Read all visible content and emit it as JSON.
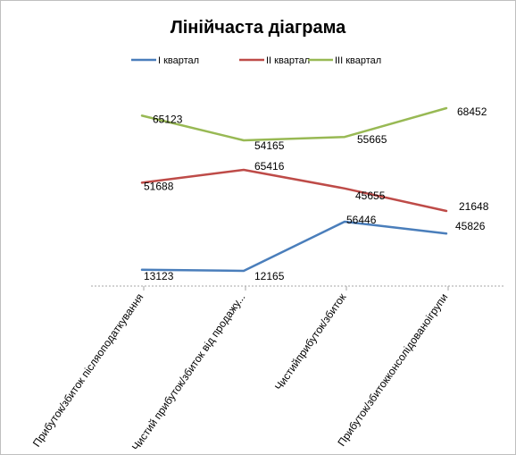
{
  "chart_data": {
    "type": "line",
    "title": "Лінійчаста діаграма",
    "categories": [
      "Прибуток/збиток післяоподаткування",
      "Чистий прибуток/збиток від продажу...",
      "Чистийприбуток/збиток",
      "Прибуток/збитокконсолідованоігрупи"
    ],
    "series": [
      {
        "name": "I квартал",
        "color": "#4a7ebb",
        "values": [
          13123,
          12165,
          56446,
          45826
        ]
      },
      {
        "name": "II квартал",
        "color": "#be4b48",
        "values": [
          51688,
          65416,
          45655,
          21648
        ]
      },
      {
        "name": "III квартал",
        "color": "#98b954",
        "values": [
          65123,
          54165,
          55665,
          68452
        ]
      }
    ],
    "legend_position": "top",
    "grid": false
  }
}
